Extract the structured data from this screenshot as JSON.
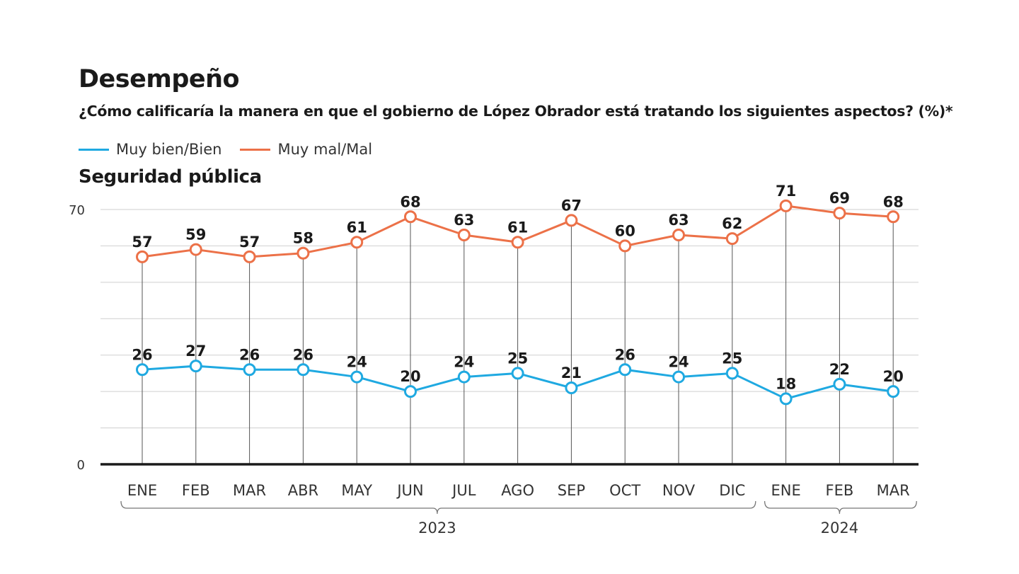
{
  "title": "Desempeño",
  "subtitle": "¿Cómo calificaría la manera en que el gobierno de López Obrador está tratando los siguientes aspectos? (%)*",
  "legend": [
    {
      "label": "Muy bien/Bien",
      "color": "#1fa9e1"
    },
    {
      "label": "Muy mal/Mal",
      "color": "#ec7148"
    }
  ],
  "chart_data": {
    "type": "line",
    "title": "Seguridad pública",
    "categories": [
      "ENE",
      "FEB",
      "MAR",
      "ABR",
      "MAY",
      "JUN",
      "JUL",
      "AGO",
      "SEP",
      "OCT",
      "NOV",
      "DIC",
      "ENE",
      "FEB",
      "MAR"
    ],
    "year_groups": [
      {
        "label": "2023",
        "from": 0,
        "to": 11
      },
      {
        "label": "2024",
        "from": 12,
        "to": 14
      }
    ],
    "series": [
      {
        "name": "Muy bien/Bien",
        "color": "#1fa9e1",
        "values": [
          26,
          27,
          26,
          26,
          24,
          20,
          24,
          25,
          21,
          26,
          24,
          25,
          18,
          22,
          20
        ]
      },
      {
        "name": "Muy mal/Mal",
        "color": "#ec7148",
        "values": [
          57,
          59,
          57,
          58,
          61,
          68,
          63,
          61,
          67,
          60,
          63,
          62,
          71,
          69,
          68
        ]
      }
    ],
    "ylim": [
      0,
      70
    ],
    "yticks_labeled": [
      0,
      70
    ],
    "grid": true,
    "legend_position": "top-left"
  }
}
